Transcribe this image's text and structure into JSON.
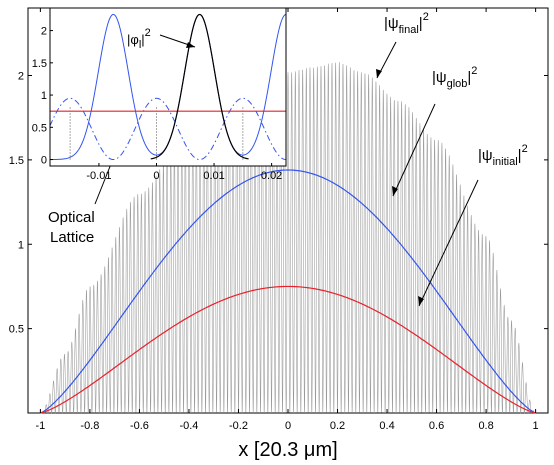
{
  "chart_data": [
    {
      "type": "line",
      "title": "",
      "xlabel": "x [20.3 μm]",
      "ylabel": "",
      "xlim": [
        -1.05,
        1.05
      ],
      "ylim": [
        0,
        2.4
      ],
      "grid": false,
      "xticks": [
        "-1",
        "-0.8",
        "-0.6",
        "-0.4",
        "-0.2",
        "0",
        "0.2",
        "0.4",
        "0.6",
        "0.8",
        "1"
      ],
      "yticks": [
        "0.5",
        "1",
        "1.5",
        "2"
      ],
      "series": [
        {
          "name": "|ψfinal|²",
          "color": "#999999",
          "kind": "rapid oscillation envelope",
          "envelope_x": [
            -1.0,
            -0.9,
            -0.8,
            -0.6,
            -0.4,
            -0.2,
            0.0,
            0.1,
            0.2,
            0.3,
            0.45,
            0.6,
            0.8,
            0.9,
            1.0
          ],
          "envelope_y": [
            0.0,
            0.35,
            0.75,
            1.3,
            1.7,
            1.95,
            2.02,
            2.05,
            2.08,
            2.02,
            1.85,
            1.62,
            1.05,
            0.55,
            0.0
          ]
        },
        {
          "name": "|ψglob|²",
          "color": "#3355ee",
          "peak": 1.44,
          "x": [
            -1,
            0,
            1
          ]
        },
        {
          "name": "|ψinitial|²",
          "color": "#e8202a",
          "peak": 0.75,
          "x": [
            -1,
            0,
            1
          ]
        }
      ],
      "annotations": {
        "psi_final": {
          "base": "|ψ",
          "sub": "final",
          "sup": "2"
        },
        "psi_glob": {
          "base": "|ψ",
          "sub": "glob",
          "sup": "2"
        },
        "psi_initial": {
          "base": "|ψ",
          "sub": "initial",
          "sup": "2"
        },
        "optical_lattice": [
          "Optical",
          "Lattice"
        ]
      }
    },
    {
      "type": "line",
      "title": "",
      "xlim": [
        -0.0185,
        0.0225
      ],
      "ylim": [
        -0.1,
        2.35
      ],
      "xticks": [
        "-0.01",
        "0",
        "0.01",
        "0.02"
      ],
      "yticks": [
        "0",
        "0.5",
        "1",
        "1.5",
        "2"
      ],
      "series": [
        {
          "name": "|φl|²",
          "color": "#000000",
          "peak_x": 0.0075,
          "peak_y": 2.25
        },
        {
          "name": "lattice wells",
          "color": "#3355ee",
          "peaks_x": [
            -0.0075,
            0.0075,
            0.0225
          ],
          "peak_y": 2.25
        },
        {
          "name": "optical lattice potential",
          "color": "#3355ee",
          "style": "dash-dot",
          "peaks_x": [
            -0.015,
            0.0,
            0.015
          ],
          "peak_y": 0.95
        },
        {
          "name": "level",
          "color": "#e8202a",
          "y": 0.75
        }
      ],
      "annotations": {
        "phi": {
          "base": "|φ",
          "sub": "l",
          "sup": "2"
        }
      }
    }
  ]
}
